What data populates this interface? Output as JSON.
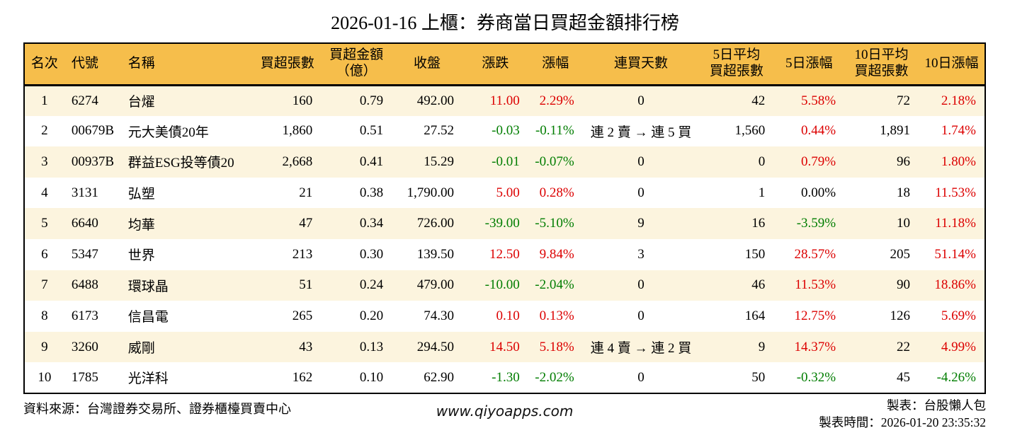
{
  "title": "2026-01-16 上櫃：券商當日買超金額排行榜",
  "colors": {
    "header_bg": "#f6be4b",
    "row_alt_bg": "#fcf4de",
    "positive_red": "#dc0000",
    "negative_green": "#007d00",
    "text": "#000000"
  },
  "chart_data": {
    "type": "table",
    "title": "2026-01-16 上櫃：券商當日買超金額排行榜",
    "columns": [
      {
        "key": "rank",
        "label": "名次",
        "align": "ac",
        "header_align": "ac",
        "width": "4.19%"
      },
      {
        "key": "code",
        "label": "代號",
        "align": "al",
        "header_align": "hl",
        "width": "5.89%"
      },
      {
        "key": "name",
        "label": "名稱",
        "align": "al",
        "header_align": "hl",
        "width": "13.83%"
      },
      {
        "key": "vol",
        "label": "買超張數",
        "align": "ar",
        "header_align": "ac",
        "width": "6.99%"
      },
      {
        "key": "amt",
        "label": "買超金額\n（億）",
        "align": "ar",
        "header_align": "ac",
        "width": "7.36%"
      },
      {
        "key": "close",
        "label": "收盤",
        "align": "ar",
        "header_align": "ac",
        "width": "7.36%"
      },
      {
        "key": "chg",
        "label": "漲跌",
        "align": "ar",
        "header_align": "ac",
        "width": "6.84%",
        "signed": true
      },
      {
        "key": "chg_pct",
        "label": "漲幅",
        "align": "ar",
        "header_align": "ac",
        "width": "5.67%",
        "signed": true
      },
      {
        "key": "streak",
        "label": "連買天數",
        "align": "ac",
        "header_align": "ac",
        "width": "12.14%"
      },
      {
        "key": "avg5",
        "label": "5日平均\n買超張數",
        "align": "ar",
        "header_align": "ac",
        "width": "7.73%"
      },
      {
        "key": "pct5",
        "label": "5日漲幅",
        "align": "ar",
        "header_align": "ac",
        "width": "7.36%",
        "signed": true
      },
      {
        "key": "avg10",
        "label": "10日平均\n買超張數",
        "align": "ar",
        "header_align": "ac",
        "width": "7.73%"
      },
      {
        "key": "pct10",
        "label": "10日漲幅",
        "align": "ar",
        "header_align": "ac",
        "width": "6.92%",
        "signed": true
      }
    ],
    "rows": [
      {
        "rank": "1",
        "code": "6274",
        "name": "台燿",
        "vol": "160",
        "amt": "0.79",
        "close": "492.00",
        "chg": "11.00",
        "chg_pct": "2.29%",
        "streak": "0",
        "avg5": "42",
        "pct5": "5.58%",
        "avg10": "72",
        "pct10": "2.18%"
      },
      {
        "rank": "2",
        "code": "00679B",
        "name": "元大美債20年",
        "vol": "1,860",
        "amt": "0.51",
        "close": "27.52",
        "chg": "-0.03",
        "chg_pct": "-0.11%",
        "streak": "連 2 賣 → 連 5 買",
        "avg5": "1,560",
        "pct5": "0.44%",
        "avg10": "1,891",
        "pct10": "1.74%"
      },
      {
        "rank": "3",
        "code": "00937B",
        "name": "群益ESG投等債20",
        "vol": "2,668",
        "amt": "0.41",
        "close": "15.29",
        "chg": "-0.01",
        "chg_pct": "-0.07%",
        "streak": "0",
        "avg5": "0",
        "pct5": "0.79%",
        "avg10": "96",
        "pct10": "1.80%"
      },
      {
        "rank": "4",
        "code": "3131",
        "name": "弘塑",
        "vol": "21",
        "amt": "0.38",
        "close": "1,790.00",
        "chg": "5.00",
        "chg_pct": "0.28%",
        "streak": "0",
        "avg5": "1",
        "pct5": "0.00%",
        "avg10": "18",
        "pct10": "11.53%"
      },
      {
        "rank": "5",
        "code": "6640",
        "name": "均華",
        "vol": "47",
        "amt": "0.34",
        "close": "726.00",
        "chg": "-39.00",
        "chg_pct": "-5.10%",
        "streak": "9",
        "avg5": "16",
        "pct5": "-3.59%",
        "avg10": "10",
        "pct10": "11.18%"
      },
      {
        "rank": "6",
        "code": "5347",
        "name": "世界",
        "vol": "213",
        "amt": "0.30",
        "close": "139.50",
        "chg": "12.50",
        "chg_pct": "9.84%",
        "streak": "3",
        "avg5": "150",
        "pct5": "28.57%",
        "avg10": "205",
        "pct10": "51.14%"
      },
      {
        "rank": "7",
        "code": "6488",
        "name": "環球晶",
        "vol": "51",
        "amt": "0.24",
        "close": "479.00",
        "chg": "-10.00",
        "chg_pct": "-2.04%",
        "streak": "0",
        "avg5": "46",
        "pct5": "11.53%",
        "avg10": "90",
        "pct10": "18.86%"
      },
      {
        "rank": "8",
        "code": "6173",
        "name": "信昌電",
        "vol": "265",
        "amt": "0.20",
        "close": "74.30",
        "chg": "0.10",
        "chg_pct": "0.13%",
        "streak": "0",
        "avg5": "164",
        "pct5": "12.75%",
        "avg10": "126",
        "pct10": "5.69%"
      },
      {
        "rank": "9",
        "code": "3260",
        "name": "威剛",
        "vol": "43",
        "amt": "0.13",
        "close": "294.50",
        "chg": "14.50",
        "chg_pct": "5.18%",
        "streak": "連 4 賣 → 連 2 買",
        "avg5": "9",
        "pct5": "14.37%",
        "avg10": "22",
        "pct10": "4.99%"
      },
      {
        "rank": "10",
        "code": "1785",
        "name": "光洋科",
        "vol": "162",
        "amt": "0.10",
        "close": "62.90",
        "chg": "-1.30",
        "chg_pct": "-2.02%",
        "streak": "0",
        "avg5": "50",
        "pct5": "-0.32%",
        "avg10": "45",
        "pct10": "-4.26%"
      }
    ]
  },
  "footer": {
    "source": "資料來源：台灣證券交易所、證券櫃檯買賣中心",
    "website": "www.qiyoapps.com",
    "author": "製表：台股懶人包",
    "generated": "製表時間：2026-01-20 23:35:32"
  }
}
